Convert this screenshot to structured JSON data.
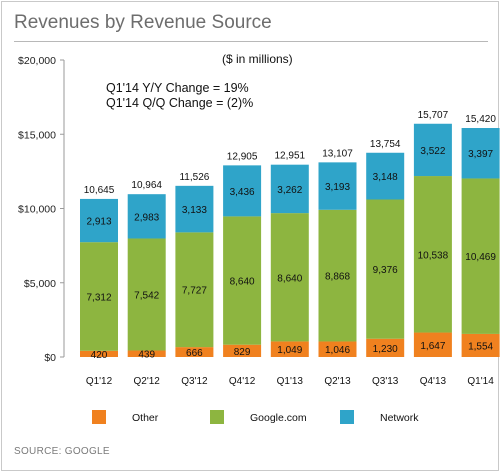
{
  "title": "Revenues by Revenue Source",
  "source": "SOURCE: GOOGLE",
  "colors": {
    "other": "#f0811f",
    "google": "#8db540",
    "network": "#2fa4c9"
  },
  "chart_data": {
    "type": "bar",
    "stacked": true,
    "unit_note": "($ in millions)",
    "annotations": [
      "Q1'14 Y/Y Change = 19%",
      "Q1'14 Q/Q Change = (2)%"
    ],
    "categories": [
      "Q1'12",
      "Q2'12",
      "Q3'12",
      "Q4'12",
      "Q1'13",
      "Q2'13",
      "Q3'13",
      "Q4'13",
      "Q1'14"
    ],
    "series": [
      {
        "name": "Other",
        "values": [
          420,
          439,
          666,
          829,
          1049,
          1046,
          1230,
          1647,
          1554
        ]
      },
      {
        "name": "Google.com",
        "values": [
          7312,
          7542,
          7727,
          8640,
          8640,
          8868,
          9376,
          10538,
          10469
        ]
      },
      {
        "name": "Network",
        "values": [
          2913,
          2983,
          3133,
          3436,
          3262,
          3193,
          3148,
          3522,
          3397
        ]
      }
    ],
    "labels": {
      "other": [
        "420",
        "439",
        "666",
        "829",
        "1,049",
        "1,046",
        "1,230",
        "1,647",
        "1,554"
      ],
      "google": [
        "7,312",
        "7,542",
        "7,727",
        "8,640",
        "8,640",
        "8,868",
        "9,376",
        "10,538",
        "10,469"
      ],
      "network": [
        "2,913",
        "2,983",
        "3,133",
        "3,436",
        "3,262",
        "3,193",
        "3,148",
        "3,522",
        "3,397"
      ]
    },
    "totals": [
      "10,645",
      "10,964",
      "11,526",
      "12,905",
      "12,951",
      "13,107",
      "13,754",
      "15,707",
      "15,420"
    ],
    "ylim": [
      0,
      20000
    ],
    "yticks": [
      0,
      5000,
      10000,
      15000,
      20000
    ],
    "ytick_labels": [
      "$0",
      "$5,000",
      "$10,000",
      "$15,000",
      "$20,000"
    ],
    "legend": [
      "Other",
      "Google.com",
      "Network"
    ],
    "legend_position": "bottom"
  }
}
